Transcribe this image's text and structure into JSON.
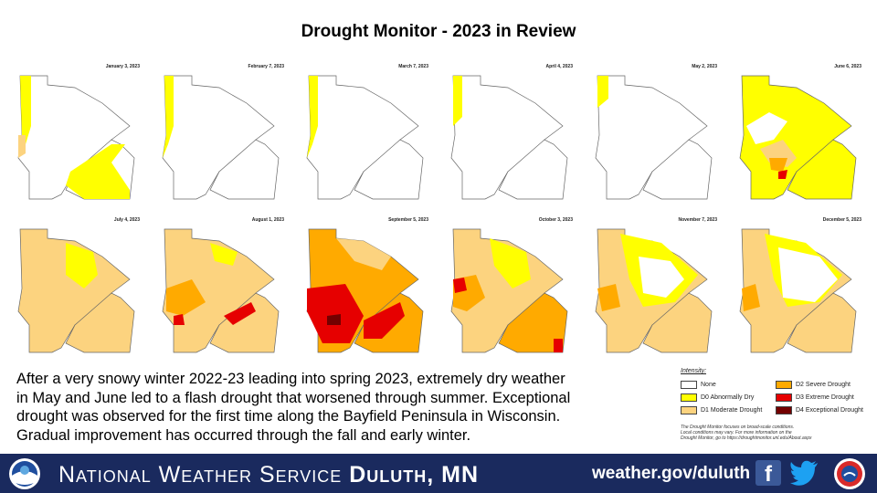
{
  "title": "Drought Monitor  - 2023 in Review",
  "maps": [
    {
      "date": "January 3, 2023"
    },
    {
      "date": "February 7, 2023"
    },
    {
      "date": "March 7, 2023"
    },
    {
      "date": "April 4, 2023"
    },
    {
      "date": "May 2, 2023"
    },
    {
      "date": "June 6, 2023"
    },
    {
      "date": "July 4, 2023"
    },
    {
      "date": "August 1, 2023"
    },
    {
      "date": "September 5, 2023"
    },
    {
      "date": "October 3, 2023"
    },
    {
      "date": "November 7, 2023"
    },
    {
      "date": "December 5, 2023"
    }
  ],
  "summary": {
    "line1": "After a very snowy winter 2022-23 leading into spring 2023, extremely dry weather",
    "line2": "in May and June led to a flash drought that worsened through summer. Exceptional",
    "line3": "drought was observed for the first time along the Bayfield Peninsula in Wisconsin.",
    "line4": "Gradual improvement has occurred through the fall and early winter."
  },
  "legend": {
    "title": "Intensity:",
    "items": [
      {
        "label": "None",
        "color": "#ffffff"
      },
      {
        "label": "D0 Abnormally Dry",
        "color": "#ffff00"
      },
      {
        "label": "D1 Moderate Drought",
        "color": "#fcd37f"
      },
      {
        "label": "D2 Severe Drought",
        "color": "#ffaa00"
      },
      {
        "label": "D3 Extreme Drought",
        "color": "#e60000"
      },
      {
        "label": "D4 Exceptional Drought",
        "color": "#730000"
      }
    ],
    "note1": "The Drought Monitor focuses on broad-scale conditions.",
    "note2": "Local conditions may vary. For more information on the",
    "note3": "Drought Monitor, go to https://droughtmonitor.unl.edu/About.aspx"
  },
  "footer": {
    "org_prefix": "National Weather Service ",
    "org_office": "Duluth, MN",
    "url": "weather.gov/duluth",
    "facebook_icon": "facebook-icon",
    "twitter_icon": "twitter-icon",
    "background": "#1a2a5e"
  }
}
